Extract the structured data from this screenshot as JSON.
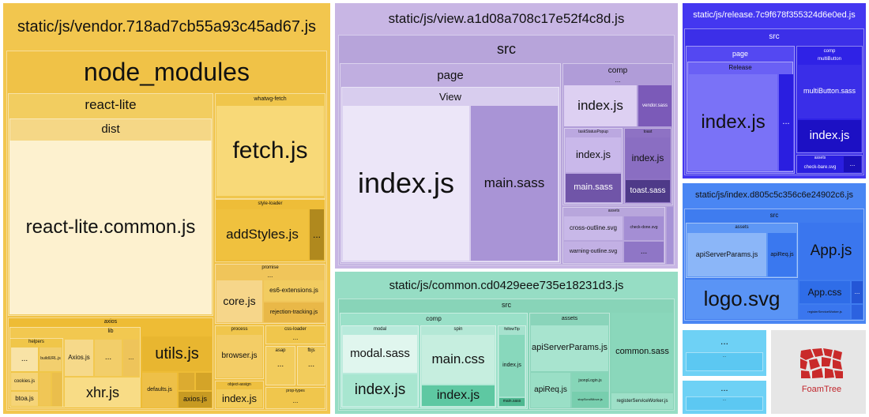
{
  "colors": {
    "vendor": "#f2c64e",
    "view": "#c4b2e2",
    "common": "#96ddc4",
    "release": "#3f32f0",
    "index": "#4a86f3",
    "cyan": "#65cff3",
    "foamtree": "#c92a2a"
  },
  "vendor": {
    "title": "static/js/vendor.718ad7cb55a93c45ad67.js",
    "node_modules": "node_modules",
    "react_lite": "react-lite",
    "dist": "dist",
    "react_lite_common": "react-lite.common.js",
    "whatwg_fetch": "whatwg-fetch",
    "fetch": "fetch.js",
    "style_loader": "style-loader",
    "addstyles": "addStyles.js",
    "ellipsis": "...",
    "promise": "promise",
    "core": "core.js",
    "es6": "es6-extensions.js",
    "rejection": "rejection-tracking.js",
    "axios": "axios",
    "lib": "lib",
    "helpers": "helpers",
    "buildurl": "buildURL.js",
    "axiosjs": "Axios.js",
    "cookies": "cookies.js",
    "btoa": "btoa.js",
    "xhr": "xhr.js",
    "utils": "utils.js",
    "defaults": "defaults.js",
    "axios_file": "axios.js",
    "process": "process",
    "browser": "browser.js",
    "css_loader": "css-loader",
    "asap": "asap",
    "fbjs": "fbjs",
    "object_assign": "object-assign",
    "prop_types": "prop-types",
    "index": "index.js"
  },
  "view": {
    "title": "static/js/view.a1d08a708c17e52f4c8d.js",
    "src": "src",
    "page": "page",
    "view": "View",
    "index": "index.js",
    "main_sass": "main.sass",
    "comp": "comp",
    "ellipsis": "...",
    "vendor_sass": "vendor.sass",
    "taskstatuspopup": "taskStatusPopup",
    "toast": "toast",
    "toast_sass": "toast.sass",
    "assets": "assets",
    "cross": "cross-outline.svg",
    "checkedone": "check-done.svg",
    "warning": "warning-outline.svg"
  },
  "common": {
    "title": "static/js/common.cd0429eee735e18231d3.js",
    "src": "src",
    "comp": "comp",
    "modal": "modal",
    "modal_sass": "modal.sass",
    "index": "index.js",
    "spin": "spin",
    "main_css": "main.css",
    "followtip": "followTip",
    "main_sass": "main.sass",
    "assets": "assets",
    "apiserverparams": "apiServerParams.js",
    "apireq": "apiReq.js",
    "jsonplogin": "jsonpLogin.js",
    "stopscroll": "stopScrollMove.js",
    "common_sass": "common.sass",
    "registersw": "registerServiceWorker.js"
  },
  "release": {
    "title": "static/js/release.7c9f678f355324d6e0ed.js",
    "src": "src",
    "page": "page",
    "release": "Release",
    "index": "index.js",
    "ellipsis": "...",
    "comp": "comp",
    "multibutton": "multiButton",
    "multibutton_sass": "multiButton.sass",
    "assets": "assets",
    "checkbare": "check-bare.svg"
  },
  "indexchunk": {
    "title": "static/js/index.d805c5c356c6e24902c6.js",
    "src": "src",
    "assets": "assets",
    "apiserverparams": "apiServerParams.js",
    "apireq": "apiReq.js",
    "app": "App.js",
    "logo": "logo.svg",
    "appcss": "App.css",
    "ellipsis": "...",
    "registersw": "registerServiceWorker.js"
  },
  "small": {
    "ellipsis": "..."
  },
  "foamtree": {
    "label": "FoamTree"
  }
}
